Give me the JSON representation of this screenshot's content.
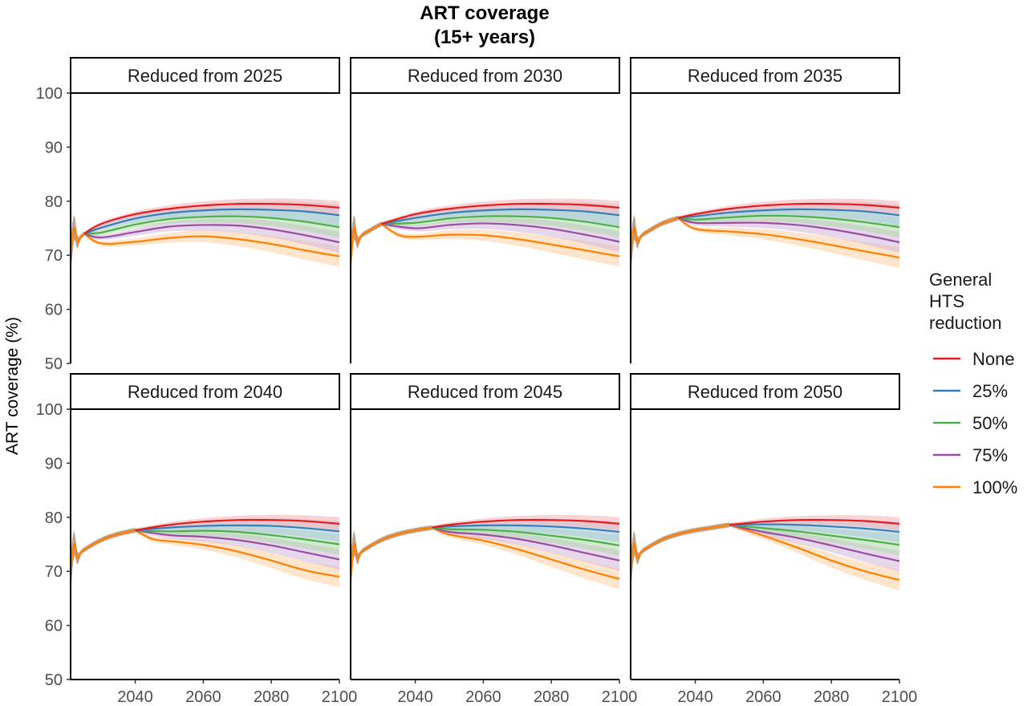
{
  "chart_data": {
    "type": "line",
    "title": "ART coverage",
    "subtitle": "(15+ years)",
    "ylabel": "ART coverage (%)",
    "xlabel": "",
    "xlim": [
      2021,
      2100
    ],
    "ylim": [
      50,
      100
    ],
    "x_ticks": [
      2040,
      2060,
      2080,
      2100
    ],
    "y_ticks": [
      50,
      60,
      70,
      80,
      90,
      100
    ],
    "grid": false,
    "legend": {
      "title_lines": [
        "General",
        "HTS",
        "reduction"
      ],
      "placement": "right"
    },
    "series_colors": {
      "None": "#e41a1c",
      "25%": "#377eb8",
      "50%": "#4daf4a",
      "75%": "#984ea3",
      "100%": "#ff7f00"
    },
    "band_colors": {
      "None": "#f4b0b4",
      "25%": "#a7c6e0",
      "50%": "#add8a9",
      "75%": "#d4b7db",
      "100%": "#fdd0a0"
    },
    "series_names": [
      "None",
      "25%",
      "50%",
      "75%",
      "100%"
    ],
    "shared_history": {
      "x": [
        2021,
        2022,
        2023,
        2024,
        2025,
        2030,
        2035,
        2040,
        2045,
        2050
      ],
      "y": [
        69.5,
        75.0,
        72.5,
        73.4,
        74.0,
        75.8,
        76.9,
        77.6,
        78.1,
        78.6
      ]
    },
    "final_values_2100": {
      "None": 78.8,
      "25%": 77.4,
      "50%": 75.2,
      "75%": 72.4,
      "100%": 69.0
    },
    "panels": [
      {
        "label": "Reduced from 2025",
        "reduction_start": 2025,
        "series": [
          {
            "name": "None",
            "x": [
              2025,
              2030,
              2040,
              2050,
              2060,
              2070,
              2080,
              2090,
              2100
            ],
            "y": [
              74.0,
              75.8,
              77.6,
              78.6,
              79.2,
              79.5,
              79.5,
              79.3,
              78.8
            ]
          },
          {
            "name": "25%",
            "x": [
              2025,
              2030,
              2040,
              2050,
              2060,
              2070,
              2080,
              2090,
              2100
            ],
            "y": [
              74.0,
              75.1,
              76.8,
              77.8,
              78.3,
              78.5,
              78.4,
              78.1,
              77.4
            ]
          },
          {
            "name": "50%",
            "x": [
              2025,
              2030,
              2040,
              2050,
              2060,
              2070,
              2080,
              2090,
              2100
            ],
            "y": [
              74.0,
              74.2,
              75.7,
              76.7,
              77.1,
              77.2,
              76.9,
              76.2,
              75.2
            ]
          },
          {
            "name": "75%",
            "x": [
              2025,
              2030,
              2040,
              2050,
              2060,
              2070,
              2080,
              2090,
              2100
            ],
            "y": [
              74.0,
              73.3,
              74.3,
              75.3,
              75.6,
              75.5,
              74.8,
              73.7,
              72.4
            ]
          },
          {
            "name": "100%",
            "x": [
              2025,
              2030,
              2040,
              2050,
              2060,
              2070,
              2080,
              2090,
              2100
            ],
            "y": [
              74.0,
              72.2,
              72.5,
              73.2,
              73.5,
              73.0,
              72.1,
              70.9,
              69.8
            ]
          }
        ]
      },
      {
        "label": "Reduced from 2030",
        "reduction_start": 2030,
        "series": [
          {
            "name": "None",
            "x": [
              2030,
              2040,
              2050,
              2060,
              2070,
              2080,
              2090,
              2100
            ],
            "y": [
              75.8,
              77.6,
              78.6,
              79.2,
              79.5,
              79.5,
              79.3,
              78.8
            ]
          },
          {
            "name": "25%",
            "x": [
              2030,
              2040,
              2050,
              2060,
              2070,
              2080,
              2090,
              2100
            ],
            "y": [
              75.8,
              76.9,
              77.8,
              78.3,
              78.5,
              78.4,
              78.1,
              77.4
            ]
          },
          {
            "name": "50%",
            "x": [
              2030,
              2040,
              2050,
              2060,
              2070,
              2080,
              2090,
              2100
            ],
            "y": [
              75.8,
              76.0,
              76.8,
              77.2,
              77.2,
              76.9,
              76.2,
              75.2
            ]
          },
          {
            "name": "75%",
            "x": [
              2030,
              2040,
              2050,
              2060,
              2070,
              2080,
              2090,
              2100
            ],
            "y": [
              75.8,
              75.0,
              75.6,
              75.9,
              75.6,
              74.9,
              73.8,
              72.5
            ]
          },
          {
            "name": "100%",
            "x": [
              2030,
              2035,
              2040,
              2050,
              2060,
              2070,
              2080,
              2090,
              2100
            ],
            "y": [
              75.8,
              73.8,
              73.4,
              73.8,
              73.7,
              73.0,
              72.0,
              70.9,
              69.8
            ]
          }
        ]
      },
      {
        "label": "Reduced from 2035",
        "reduction_start": 2035,
        "series": [
          {
            "name": "None",
            "x": [
              2035,
              2040,
              2050,
              2060,
              2070,
              2080,
              2090,
              2100
            ],
            "y": [
              76.9,
              77.6,
              78.6,
              79.2,
              79.5,
              79.5,
              79.3,
              78.8
            ]
          },
          {
            "name": "25%",
            "x": [
              2035,
              2040,
              2050,
              2060,
              2070,
              2080,
              2090,
              2100
            ],
            "y": [
              76.9,
              77.2,
              77.9,
              78.3,
              78.5,
              78.4,
              78.1,
              77.4
            ]
          },
          {
            "name": "50%",
            "x": [
              2035,
              2040,
              2050,
              2060,
              2070,
              2080,
              2090,
              2100
            ],
            "y": [
              76.9,
              76.6,
              77.0,
              77.3,
              77.2,
              76.8,
              76.1,
              75.2
            ]
          },
          {
            "name": "75%",
            "x": [
              2035,
              2040,
              2050,
              2060,
              2070,
              2080,
              2090,
              2100
            ],
            "y": [
              76.9,
              76.0,
              76.0,
              76.0,
              75.6,
              74.8,
              73.7,
              72.4
            ]
          },
          {
            "name": "100%",
            "x": [
              2035,
              2040,
              2050,
              2060,
              2070,
              2080,
              2090,
              2100
            ],
            "y": [
              76.9,
              74.9,
              74.4,
              73.9,
              73.0,
              71.9,
              70.7,
              69.6
            ]
          }
        ]
      },
      {
        "label": "Reduced from 2040",
        "reduction_start": 2040,
        "series": [
          {
            "name": "None",
            "x": [
              2040,
              2050,
              2060,
              2070,
              2080,
              2090,
              2100
            ],
            "y": [
              77.6,
              78.6,
              79.2,
              79.5,
              79.5,
              79.3,
              78.8
            ]
          },
          {
            "name": "25%",
            "x": [
              2040,
              2050,
              2060,
              2070,
              2080,
              2090,
              2100
            ],
            "y": [
              77.6,
              78.1,
              78.4,
              78.5,
              78.4,
              78.0,
              77.4
            ]
          },
          {
            "name": "50%",
            "x": [
              2040,
              2050,
              2060,
              2070,
              2080,
              2090,
              2100
            ],
            "y": [
              77.6,
              77.4,
              77.5,
              77.3,
              76.7,
              75.9,
              75.0
            ]
          },
          {
            "name": "75%",
            "x": [
              2040,
              2050,
              2060,
              2070,
              2080,
              2090,
              2100
            ],
            "y": [
              77.6,
              76.7,
              76.4,
              75.8,
              74.8,
              73.5,
              72.2
            ]
          },
          {
            "name": "100%",
            "x": [
              2040,
              2045,
              2050,
              2060,
              2070,
              2080,
              2090,
              2100
            ],
            "y": [
              77.6,
              76.0,
              75.6,
              74.9,
              73.7,
              72.0,
              70.2,
              69.0
            ]
          }
        ]
      },
      {
        "label": "Reduced from 2045",
        "reduction_start": 2045,
        "series": [
          {
            "name": "None",
            "x": [
              2045,
              2050,
              2060,
              2070,
              2080,
              2090,
              2100
            ],
            "y": [
              78.1,
              78.6,
              79.2,
              79.5,
              79.5,
              79.3,
              78.8
            ]
          },
          {
            "name": "25%",
            "x": [
              2045,
              2050,
              2060,
              2070,
              2080,
              2090,
              2100
            ],
            "y": [
              78.1,
              78.3,
              78.5,
              78.5,
              78.3,
              77.9,
              77.3
            ]
          },
          {
            "name": "50%",
            "x": [
              2045,
              2050,
              2060,
              2070,
              2080,
              2090,
              2100
            ],
            "y": [
              78.1,
              77.8,
              77.7,
              77.3,
              76.6,
              75.8,
              74.8
            ]
          },
          {
            "name": "75%",
            "x": [
              2045,
              2050,
              2060,
              2070,
              2080,
              2090,
              2100
            ],
            "y": [
              78.1,
              77.3,
              76.8,
              76.0,
              74.8,
              73.4,
              72.0
            ]
          },
          {
            "name": "100%",
            "x": [
              2045,
              2050,
              2060,
              2070,
              2080,
              2090,
              2100
            ],
            "y": [
              78.1,
              76.8,
              75.7,
              74.1,
              72.2,
              70.3,
              68.6
            ]
          }
        ]
      },
      {
        "label": "Reduced from 2050",
        "reduction_start": 2050,
        "series": [
          {
            "name": "None",
            "x": [
              2050,
              2060,
              2070,
              2080,
              2090,
              2100
            ],
            "y": [
              78.6,
              79.2,
              79.5,
              79.5,
              79.3,
              78.8
            ]
          },
          {
            "name": "25%",
            "x": [
              2050,
              2060,
              2070,
              2080,
              2090,
              2100
            ],
            "y": [
              78.6,
              78.7,
              78.6,
              78.3,
              77.9,
              77.3
            ]
          },
          {
            "name": "50%",
            "x": [
              2050,
              2060,
              2070,
              2080,
              2090,
              2100
            ],
            "y": [
              78.6,
              78.0,
              77.4,
              76.6,
              75.8,
              74.9
            ]
          },
          {
            "name": "75%",
            "x": [
              2050,
              2060,
              2070,
              2080,
              2090,
              2100
            ],
            "y": [
              78.6,
              77.3,
              76.2,
              74.8,
              73.3,
              71.9
            ]
          },
          {
            "name": "100%",
            "x": [
              2050,
              2060,
              2070,
              2080,
              2090,
              2100
            ],
            "y": [
              78.6,
              76.6,
              74.4,
              72.0,
              70.0,
              68.4
            ]
          }
        ]
      }
    ]
  }
}
